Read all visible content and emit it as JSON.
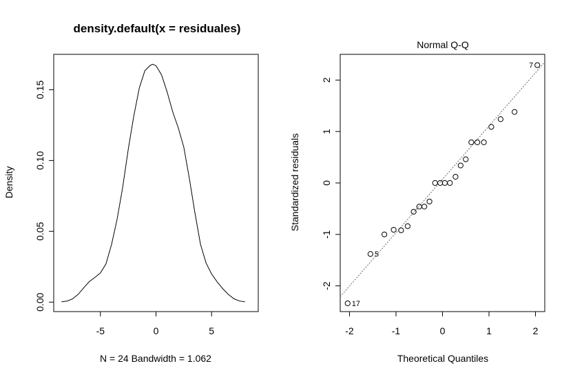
{
  "chart_data": [
    {
      "type": "line",
      "title": "density.default(x = residuales)",
      "xlabel": "N = 24   Bandwidth = 1.062",
      "ylabel": "Density",
      "xlim": [
        -9.2,
        9.2
      ],
      "ylim": [
        -0.0067,
        0.175
      ],
      "xticks": [
        -5,
        0,
        5
      ],
      "xtick_labels": [
        "-5",
        "0",
        "5"
      ],
      "yticks": [
        0.0,
        0.05,
        0.1,
        0.15
      ],
      "ytick_labels": [
        "0.00",
        "0.05",
        "0.10",
        "0.15"
      ],
      "grid": false,
      "series": [
        {
          "x": [
            -8.5,
            -8,
            -7.5,
            -7,
            -6.5,
            -6,
            -5.5,
            -5,
            -4.5,
            -4,
            -3.5,
            -3,
            -2.5,
            -2,
            -1.5,
            -1,
            -0.5,
            -0.3,
            0,
            0.5,
            1,
            1.5,
            2,
            2.5,
            3,
            3.5,
            4,
            4.5,
            5,
            5.5,
            6,
            6.5,
            7,
            7.5,
            8
          ],
          "y": [
            0.0002,
            0.0007,
            0.0023,
            0.0055,
            0.0101,
            0.0145,
            0.0174,
            0.0206,
            0.027,
            0.0406,
            0.0585,
            0.0809,
            0.1077,
            0.1313,
            0.1513,
            0.1635,
            0.1673,
            0.168,
            0.167,
            0.1605,
            0.1485,
            0.1345,
            0.1232,
            0.1095,
            0.0874,
            0.0632,
            0.0409,
            0.0277,
            0.0199,
            0.0143,
            0.0095,
            0.0055,
            0.0024,
            0.0008,
            0.0002
          ]
        }
      ]
    },
    {
      "type": "scatter",
      "title": "Normal Q-Q",
      "xlabel": "Theoretical Quantiles",
      "ylabel": "Standardized residuals",
      "xlim": [
        -2.2,
        2.2
      ],
      "ylim": [
        -2.5,
        2.5
      ],
      "xticks": [
        -2,
        -1,
        0,
        1,
        2
      ],
      "xtick_labels": [
        "-2",
        "-1",
        "0",
        "1",
        "2"
      ],
      "yticks": [
        -2,
        -1,
        0,
        1,
        2
      ],
      "ytick_labels": [
        "-2",
        "-1",
        "0",
        "1",
        "2"
      ],
      "grid": false,
      "series": [
        {
          "x": [
            -2.04,
            -1.55,
            -1.25,
            -1.05,
            -0.89,
            -0.75,
            -0.62,
            -0.5,
            -0.39,
            -0.28,
            -0.16,
            -0.05,
            0.05,
            0.16,
            0.28,
            0.39,
            0.5,
            0.62,
            0.75,
            0.89,
            1.05,
            1.25,
            1.55,
            2.04
          ],
          "y": [
            -2.34,
            -1.38,
            -1.0,
            -0.91,
            -0.92,
            -0.84,
            -0.56,
            -0.46,
            -0.46,
            -0.36,
            0.0,
            0.0,
            0.0,
            0.0,
            0.12,
            0.34,
            0.46,
            0.79,
            0.79,
            0.79,
            1.09,
            1.24,
            1.38,
            2.29
          ]
        }
      ],
      "reference_line": {
        "x": [
          -2.2,
          2.2
        ],
        "y": [
          -2.21,
          2.35
        ]
      },
      "point_labels": [
        {
          "index": 0,
          "text": "17"
        },
        {
          "index": 1,
          "text": "5"
        },
        {
          "index": 23,
          "text": "7"
        }
      ]
    }
  ]
}
